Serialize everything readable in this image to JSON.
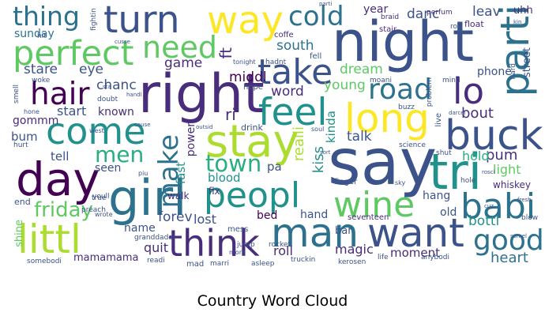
{
  "title": "Country Word Cloud",
  "colormap": [
    "#440154",
    "#472d7b",
    "#3b528b",
    "#2c728e",
    "#21918c",
    "#28ae80",
    "#5ec962",
    "#addc30",
    "#fde725"
  ],
  "words": [
    {
      "text": "turn",
      "color": "#3b528b"
    },
    {
      "text": "way",
      "color": "#fde725"
    },
    {
      "text": "night",
      "color": "#3b528b"
    },
    {
      "text": "thing",
      "color": "#2c728e"
    },
    {
      "text": "perfect",
      "color": "#5ec962"
    },
    {
      "text": "need",
      "color": "#5ec962"
    },
    {
      "text": "cold",
      "color": "#2c728e"
    },
    {
      "text": "take",
      "color": "#3b528b"
    },
    {
      "text": "parti",
      "color": "#2c728e"
    },
    {
      "text": "right",
      "color": "#472d7b"
    },
    {
      "text": "hair",
      "color": "#440154"
    },
    {
      "text": "road",
      "color": "#2c728e"
    },
    {
      "text": "lo",
      "color": "#472d7b"
    },
    {
      "text": "feel",
      "color": "#21918c"
    },
    {
      "text": "long",
      "color": "#fde725"
    },
    {
      "text": "come",
      "color": "#21918c"
    },
    {
      "text": "stay",
      "color": "#addc30"
    },
    {
      "text": "buck",
      "color": "#3b528b"
    },
    {
      "text": "say",
      "color": "#3b528b"
    },
    {
      "text": "tri",
      "color": "#21918c"
    },
    {
      "text": "day",
      "color": "#440154"
    },
    {
      "text": "men",
      "color": "#28ae80"
    },
    {
      "text": "make",
      "color": "#2c728e"
    },
    {
      "text": "town",
      "color": "#28ae80"
    },
    {
      "text": "girl",
      "color": "#2c728e"
    },
    {
      "text": "peopl",
      "color": "#21918c"
    },
    {
      "text": "wine",
      "color": "#5ec962"
    },
    {
      "text": "babi",
      "color": "#2c728e"
    },
    {
      "text": "littl",
      "color": "#addc30"
    },
    {
      "text": "think",
      "color": "#472d7b"
    },
    {
      "text": "man",
      "color": "#2c728e"
    },
    {
      "text": "want",
      "color": "#3b528b"
    },
    {
      "text": "good",
      "color": "#2c728e"
    },
    {
      "text": "friday",
      "color": "#5ec962"
    },
    {
      "text": "heart",
      "color": "#2c728e"
    },
    {
      "text": "sunday",
      "color": "#2c728e"
    },
    {
      "text": "stare",
      "color": "#3b528b"
    },
    {
      "text": "eye",
      "color": "#3b528b"
    },
    {
      "text": "game",
      "color": "#472d7b"
    },
    {
      "text": "chanc",
      "color": "#3b528b"
    },
    {
      "text": "middl",
      "color": "#440154"
    },
    {
      "text": "south",
      "color": "#2c728e"
    },
    {
      "text": "year",
      "color": "#472d7b"
    },
    {
      "text": "danc",
      "color": "#3b528b"
    },
    {
      "text": "leav",
      "color": "#3b528b"
    },
    {
      "text": "uhh",
      "color": "#472d7b"
    },
    {
      "text": "dream",
      "color": "#5ec962"
    },
    {
      "text": "phone",
      "color": "#3b528b"
    },
    {
      "text": "word",
      "color": "#472d7b"
    },
    {
      "text": "young",
      "color": "#5ec962"
    },
    {
      "text": "start",
      "color": "#3b528b"
    },
    {
      "text": "known",
      "color": "#472d7b"
    },
    {
      "text": "gommm",
      "color": "#472d7b"
    },
    {
      "text": "ri",
      "color": "#472d7b"
    },
    {
      "text": "bout",
      "color": "#472d7b"
    },
    {
      "text": "bum",
      "color": "#3b528b"
    },
    {
      "text": "tell",
      "color": "#3b528b"
    },
    {
      "text": "talk",
      "color": "#3b528b"
    },
    {
      "text": "pum",
      "color": "#472d7b"
    },
    {
      "text": "hold",
      "color": "#28ae80"
    },
    {
      "text": "light",
      "color": "#5ec962"
    },
    {
      "text": "seen",
      "color": "#3b528b"
    },
    {
      "text": "kiss",
      "color": "#21918c"
    },
    {
      "text": "kinda",
      "color": "#21918c"
    },
    {
      "text": "pa",
      "color": "#3b528b"
    },
    {
      "text": "blood",
      "color": "#21918c"
    },
    {
      "text": "fix",
      "color": "#472d7b"
    },
    {
      "text": "forev",
      "color": "#3b528b"
    },
    {
      "text": "hang",
      "color": "#3b528b"
    },
    {
      "text": "old",
      "color": "#3b528b"
    },
    {
      "text": "bed",
      "color": "#440154"
    },
    {
      "text": "hand",
      "color": "#3b528b"
    },
    {
      "text": "lost",
      "color": "#3b528b"
    },
    {
      "text": "name",
      "color": "#3b528b"
    },
    {
      "text": "quit",
      "color": "#472d7b"
    },
    {
      "text": "bar",
      "color": "#3b528b"
    },
    {
      "text": "bottl",
      "color": "#21918c"
    },
    {
      "text": "roll",
      "color": "#472d7b"
    },
    {
      "text": "magic",
      "color": "#472d7b"
    },
    {
      "text": "moment",
      "color": "#472d7b"
    },
    {
      "text": "mamamama",
      "color": "#472d7b"
    },
    {
      "text": "fast",
      "color": "#21918c"
    },
    {
      "text": "power",
      "color": "#472d7b"
    },
    {
      "text": "realli",
      "color": "#addc30"
    },
    {
      "text": "ft",
      "color": "#472d7b"
    },
    {
      "text": "whiskey",
      "color": "#472d7b"
    },
    {
      "text": "shine",
      "color": "#5ec962"
    },
    {
      "text": "end",
      "color": "#3b528b"
    },
    {
      "text": "seventeen",
      "color": "#472d7b"
    },
    {
      "text": "drink",
      "color": "#3b528b"
    },
    {
      "text": "hope",
      "color": "#3b528b"
    },
    {
      "text": "mess",
      "color": "#3b528b"
    },
    {
      "text": "walk",
      "color": "#472d7b"
    },
    {
      "text": "street",
      "color": "#3b528b"
    },
    {
      "text": "hit",
      "color": "#3b528b"
    },
    {
      "text": "coffe",
      "color": "#472d7b"
    },
    {
      "text": "fell",
      "color": "#3b528b"
    },
    {
      "text": "stair",
      "color": "#472d7b"
    },
    {
      "text": "braid",
      "color": "#472d7b"
    },
    {
      "text": "perfum",
      "color": "#472d7b"
    },
    {
      "text": "float",
      "color": "#472d7b"
    },
    {
      "text": "rod",
      "color": "#3b528b"
    },
    {
      "text": "fightin",
      "color": "#3b528b"
    },
    {
      "text": "woke",
      "color": "#3b528b"
    },
    {
      "text": "doubt",
      "color": "#3b528b"
    },
    {
      "text": "smell",
      "color": "#3b528b"
    },
    {
      "text": "hurt",
      "color": "#3b528b"
    },
    {
      "text": "buzz",
      "color": "#3b528b"
    },
    {
      "text": "mind",
      "color": "#3b528b"
    },
    {
      "text": "moani",
      "color": "#3b528b"
    },
    {
      "text": "hard",
      "color": "#3b528b"
    },
    {
      "text": "live",
      "color": "#3b528b"
    },
    {
      "text": "shut",
      "color": "#3b528b"
    },
    {
      "text": "finger",
      "color": "#3b528b"
    },
    {
      "text": "science",
      "color": "#3b528b"
    },
    {
      "text": "sky",
      "color": "#3b528b"
    },
    {
      "text": "hole",
      "color": "#3b528b"
    },
    {
      "text": "jump",
      "color": "#3b528b"
    },
    {
      "text": "rocket",
      "color": "#3b528b"
    },
    {
      "text": "youll",
      "color": "#3b528b"
    },
    {
      "text": "preach",
      "color": "#3b528b"
    },
    {
      "text": "true",
      "color": "#3b528b"
    },
    {
      "text": "wrote",
      "color": "#3b528b"
    },
    {
      "text": "granddaddi",
      "color": "#3b528b"
    },
    {
      "text": "somebodi",
      "color": "#3b528b"
    },
    {
      "text": "readi",
      "color": "#3b528b"
    },
    {
      "text": "mad",
      "color": "#3b528b"
    },
    {
      "text": "marri",
      "color": "#3b528b"
    },
    {
      "text": "asleep",
      "color": "#3b528b"
    },
    {
      "text": "truckin",
      "color": "#3b528b"
    },
    {
      "text": "kerosen",
      "color": "#3b528b"
    },
    {
      "text": "life",
      "color": "#3b528b"
    },
    {
      "text": "anybodi",
      "color": "#3b528b"
    },
    {
      "text": "morn",
      "color": "#3b528b"
    },
    {
      "text": "soul",
      "color": "#3b528b"
    },
    {
      "text": "problem",
      "color": "#3b528b"
    },
    {
      "text": "blow",
      "color": "#3b528b"
    },
    {
      "text": "hadnt",
      "color": "#3b528b"
    },
    {
      "text": "tonight",
      "color": "#3b528b"
    },
    {
      "text": "hone",
      "color": "#3b528b"
    },
    {
      "text": "west",
      "color": "#3b528b"
    },
    {
      "text": "piu",
      "color": "#3b528b"
    },
    {
      "text": "cause",
      "color": "#3b528b"
    },
    {
      "text": "cusse",
      "color": "#3b528b"
    },
    {
      "text": "sta",
      "color": "#3b528b"
    },
    {
      "text": "handl",
      "color": "#3b528b"
    },
    {
      "text": "darcel",
      "color": "#3b528b"
    },
    {
      "text": "outsid",
      "color": "#3b528b"
    },
    {
      "text": "sort",
      "color": "#3b528b"
    },
    {
      "text": "parti",
      "color": "#3b528b"
    },
    {
      "text": "fresh",
      "color": "#3b528b"
    },
    {
      "text": "rosci",
      "color": "#3b528b"
    },
    {
      "text": "cuz",
      "color": "#3b528b"
    },
    {
      "text": "somel",
      "color": "#3b528b"
    },
    {
      "text": "kin",
      "color": "#3b528b"
    },
    {
      "text": "gon",
      "color": "#3b528b"
    }
  ]
}
